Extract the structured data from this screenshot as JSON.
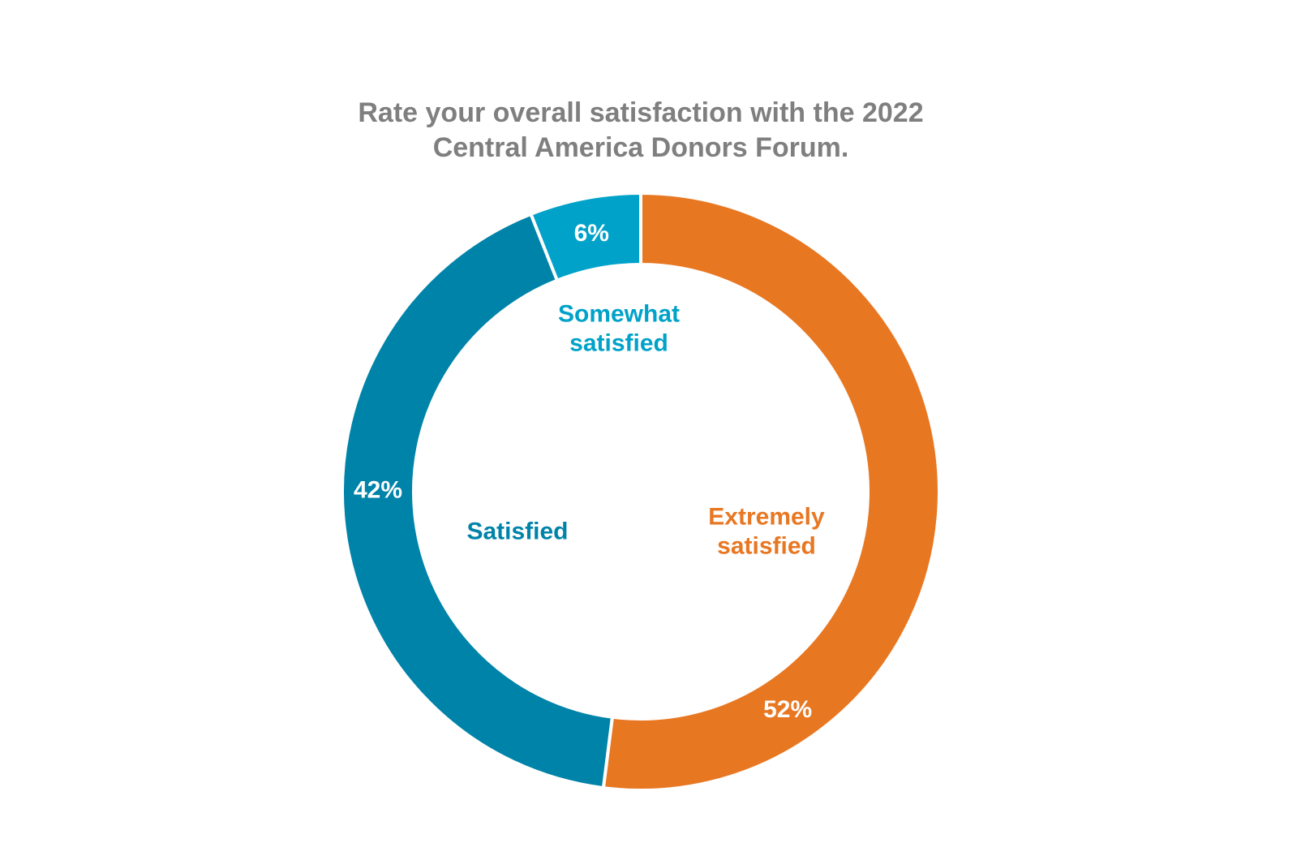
{
  "chart_data": {
    "type": "pie",
    "style": "donut",
    "title_lines": [
      "Rate your overall satisfaction with the 2022",
      "Central America Donors Forum."
    ],
    "slices": [
      {
        "key": "extremely-satisfied",
        "label_lines": [
          "Extremely",
          "satisfied"
        ],
        "value": 52,
        "value_label": "52%",
        "color": "#E87722"
      },
      {
        "key": "satisfied",
        "label_lines": [
          "Satisfied"
        ],
        "value": 42,
        "value_label": "42%",
        "color": "#0083A9"
      },
      {
        "key": "somewhat-satisfied",
        "label_lines": [
          "Somewhat",
          "satisfied"
        ],
        "value": 6,
        "value_label": "6%",
        "color": "#00A2C9"
      }
    ],
    "start_angle": "12 o'clock",
    "direction": "clockwise",
    "label_colors": {
      "extremely-satisfied": "#E87722",
      "satisfied": "#0083A9",
      "somewhat-satisfied": "#00A2C9"
    }
  }
}
